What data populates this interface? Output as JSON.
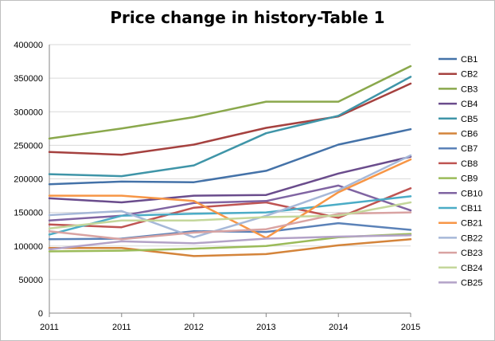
{
  "chart_data": {
    "type": "line",
    "title": "Price change in history-Table 1",
    "xlabel": "",
    "ylabel": "",
    "categories": [
      "2011",
      "2011",
      "2012",
      "2013",
      "2014",
      "2015"
    ],
    "ylim": [
      0,
      400000
    ],
    "yticks": [
      0,
      50000,
      100000,
      150000,
      200000,
      250000,
      300000,
      350000,
      400000
    ],
    "grid": "horizontal",
    "legend": "right",
    "series": [
      {
        "name": "CB1",
        "color": "#4472a8",
        "values": [
          192000,
          196000,
          195000,
          212000,
          251000,
          274000
        ]
      },
      {
        "name": "CB2",
        "color": "#a5413f",
        "values": [
          240000,
          236000,
          251000,
          276000,
          293000,
          342000
        ]
      },
      {
        "name": "CB3",
        "color": "#8aa84c",
        "values": [
          260000,
          275000,
          292000,
          315000,
          315000,
          368000
        ]
      },
      {
        "name": "CB4",
        "color": "#6a4c8c",
        "values": [
          171000,
          165000,
          175000,
          176000,
          208000,
          233000
        ]
      },
      {
        "name": "CB5",
        "color": "#3f95a8",
        "values": [
          207000,
          204000,
          220000,
          268000,
          294000,
          352000
        ]
      },
      {
        "name": "CB6",
        "color": "#d4843a",
        "values": [
          97000,
          97000,
          85000,
          88000,
          101000,
          110000
        ]
      },
      {
        "name": "CB7",
        "color": "#5b82b8",
        "values": [
          110000,
          111000,
          122000,
          121000,
          134000,
          124000
        ]
      },
      {
        "name": "CB8",
        "color": "#bf5452",
        "values": [
          132000,
          128000,
          157000,
          165000,
          142000,
          186000
        ]
      },
      {
        "name": "CB9",
        "color": "#9bbb59",
        "values": [
          92000,
          93000,
          96000,
          100000,
          113000,
          118000
        ]
      },
      {
        "name": "CB10",
        "color": "#8064a2",
        "values": [
          138000,
          145000,
          164000,
          167000,
          190000,
          153000
        ]
      },
      {
        "name": "CB11",
        "color": "#4bacc6",
        "values": [
          117000,
          145000,
          148000,
          150000,
          162000,
          174000
        ]
      },
      {
        "name": "CB21",
        "color": "#f79646",
        "values": [
          175000,
          175000,
          167000,
          112000,
          180000,
          229000
        ]
      },
      {
        "name": "CB22",
        "color": "#a6b8d8",
        "values": [
          146000,
          152000,
          113000,
          145000,
          183000,
          235000
        ]
      },
      {
        "name": "CB23",
        "color": "#d9a3a2",
        "values": [
          122000,
          110000,
          120000,
          125000,
          148000,
          150000
        ]
      },
      {
        "name": "CB24",
        "color": "#c4d79b",
        "values": [
          126000,
          138000,
          138000,
          143000,
          145000,
          165000
        ]
      },
      {
        "name": "CB25",
        "color": "#b3a2c7",
        "values": [
          95000,
          107000,
          104000,
          111000,
          114000,
          116000
        ]
      }
    ]
  }
}
